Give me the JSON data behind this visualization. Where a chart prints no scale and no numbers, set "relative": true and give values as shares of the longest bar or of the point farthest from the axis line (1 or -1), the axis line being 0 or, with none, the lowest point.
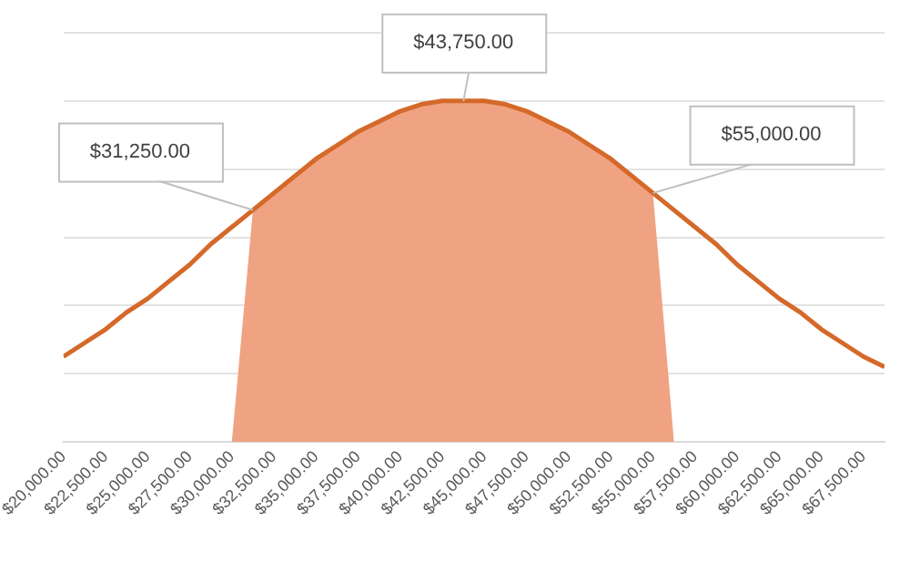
{
  "chart_data": {
    "type": "line",
    "relative": true,
    "grid": "y",
    "legend": false,
    "marker": "none",
    "line_style": "solid",
    "xlim": [
      20000,
      68750
    ],
    "xticks": [
      {
        "value": 20000,
        "label": "$20,000.00"
      },
      {
        "value": 22500,
        "label": "$22,500.00"
      },
      {
        "value": 25000,
        "label": "$25,000.00"
      },
      {
        "value": 27500,
        "label": "$27,500.00"
      },
      {
        "value": 30000,
        "label": "$30,000.00"
      },
      {
        "value": 32500,
        "label": "$32,500.00"
      },
      {
        "value": 35000,
        "label": "$35,000.00"
      },
      {
        "value": 37500,
        "label": "$37,500.00"
      },
      {
        "value": 40000,
        "label": "$40,000.00"
      },
      {
        "value": 42500,
        "label": "$42,500.00"
      },
      {
        "value": 45000,
        "label": "$45,000.00"
      },
      {
        "value": 47500,
        "label": "$47,500.00"
      },
      {
        "value": 50000,
        "label": "$50,000.00"
      },
      {
        "value": 52500,
        "label": "$52,500.00"
      },
      {
        "value": 55000,
        "label": "$55,000.00"
      },
      {
        "value": 57500,
        "label": "$57,500.00"
      },
      {
        "value": 60000,
        "label": "$60,000.00"
      },
      {
        "value": 62500,
        "label": "$62,500.00"
      },
      {
        "value": 65000,
        "label": "$65,000.00"
      },
      {
        "value": 67500,
        "label": "$67,500.00"
      }
    ],
    "series": [
      {
        "type": "area",
        "color": "#f0a382",
        "x": [
          30000,
          31250,
          32500,
          33750,
          35000,
          36250,
          37500,
          38750,
          40000,
          41250,
          42500,
          43750,
          45000,
          46250,
          47500,
          48750,
          50000,
          51250,
          52500,
          53750,
          55000,
          56250
        ],
        "values": [
          0,
          0.68,
          0.73,
          0.78,
          0.83,
          0.87,
          0.91,
          0.94,
          0.97,
          0.99,
          1.0,
          1,
          1.0,
          0.99,
          0.97,
          0.94,
          0.91,
          0.87,
          0.83,
          0.78,
          0.73,
          0
        ]
      },
      {
        "type": "line",
        "color": "#d5692a",
        "x": [
          20000,
          21250,
          22500,
          23750,
          25000,
          26250,
          27500,
          28750,
          30000,
          31250,
          32500,
          33750,
          35000,
          36250,
          37500,
          38750,
          40000,
          41250,
          42500,
          43750,
          45000,
          46250,
          47500,
          48750,
          50000,
          51250,
          52500,
          53750,
          55000,
          56250,
          57500,
          58750,
          60000,
          61250,
          62500,
          63750,
          65000,
          66250,
          67500,
          68750
        ],
        "values": [
          0.25,
          0.29,
          0.33,
          0.38,
          0.42,
          0.47,
          0.52,
          0.58,
          0.63,
          0.68,
          0.73,
          0.78,
          0.83,
          0.87,
          0.91,
          0.94,
          0.97,
          0.99,
          1.0,
          1,
          1.0,
          0.99,
          0.97,
          0.94,
          0.91,
          0.87,
          0.83,
          0.78,
          0.73,
          0.68,
          0.63,
          0.58,
          0.52,
          0.47,
          0.42,
          0.38,
          0.33,
          0.29,
          0.25,
          0.22
        ]
      }
    ],
    "annotations": [
      {
        "text": "$31,250.00",
        "x": 31250,
        "y": 0.68
      },
      {
        "text": "$43,750.00",
        "x": 43750,
        "y": 1
      },
      {
        "text": "$55,000.00",
        "x": 55000,
        "y": 0.73
      }
    ]
  }
}
